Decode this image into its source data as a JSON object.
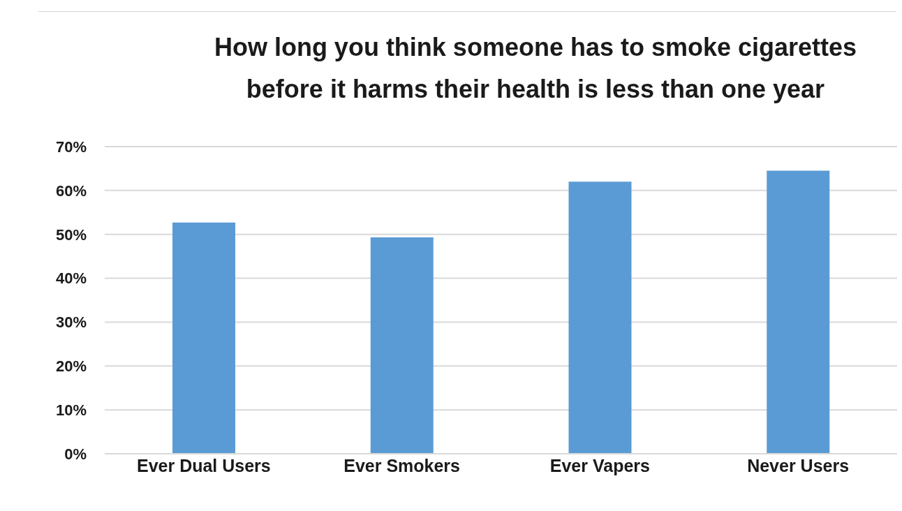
{
  "chart_data": {
    "type": "bar",
    "title": "How long you think someone has to smoke cigarettes\nbefore it harms their health is less than one year",
    "categories": [
      "Ever Dual Users",
      "Ever Smokers",
      "Ever Vapers",
      "Never Users"
    ],
    "values": [
      52.7,
      49.3,
      62.0,
      64.5
    ],
    "color": "#5b9bd5",
    "ylim": [
      0,
      70
    ],
    "yticks": [
      {
        "value": 0,
        "label": "0%"
      },
      {
        "value": 10,
        "label": "10%"
      },
      {
        "value": 20,
        "label": "20%"
      },
      {
        "value": 30,
        "label": "30%"
      },
      {
        "value": 40,
        "label": "40%"
      },
      {
        "value": 50,
        "label": "50%"
      },
      {
        "value": 60,
        "label": "60%"
      },
      {
        "value": 70,
        "label": "70%"
      }
    ],
    "grid": "y"
  }
}
